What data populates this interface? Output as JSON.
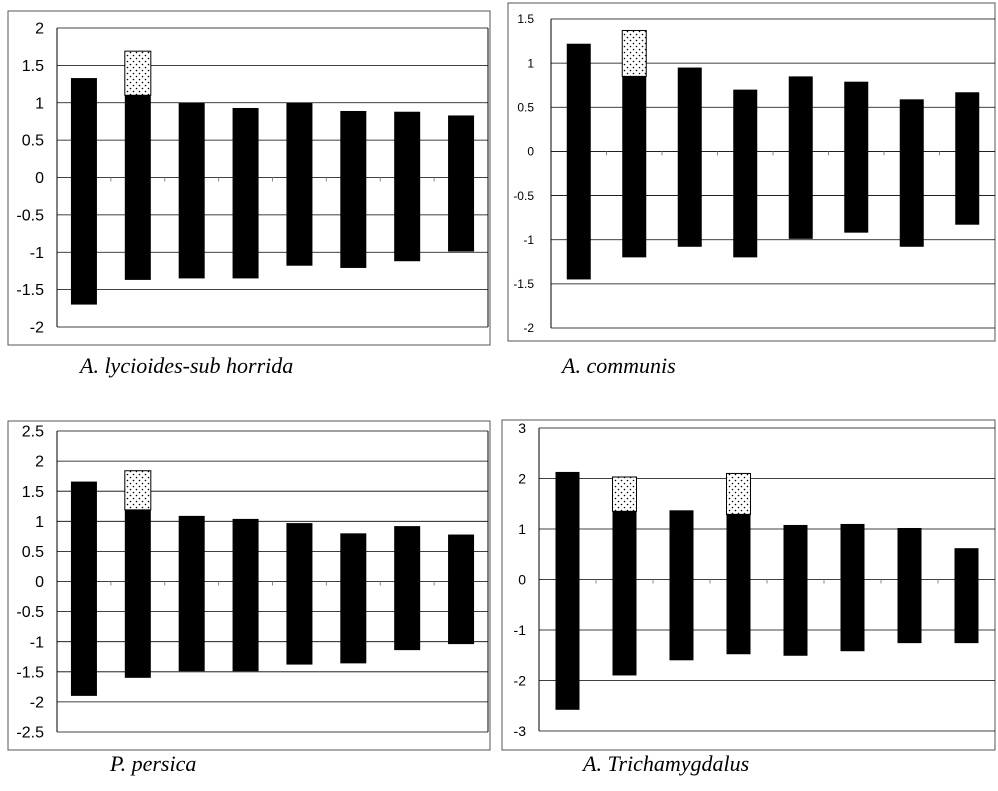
{
  "chart_data": [
    {
      "type": "bar",
      "chart_kind": "range bar with stippled extension",
      "caption": "A. lycioides-sub horrida",
      "ylim": [
        -2,
        2
      ],
      "yticks": [
        "2",
        "1.5",
        "1",
        "0.5",
        "0",
        "-0.5",
        "-1",
        "-1.5",
        "-2"
      ],
      "grid": true,
      "series": [
        {
          "low": -1.7,
          "high": 1.33
        },
        {
          "low": -1.37,
          "high": 1.1,
          "ext_high": 1.69
        },
        {
          "low": -1.35,
          "high": 1.0
        },
        {
          "low": -1.35,
          "high": 0.93
        },
        {
          "low": -1.18,
          "high": 1.0
        },
        {
          "low": -1.21,
          "high": 0.89
        },
        {
          "low": -1.12,
          "high": 0.88
        },
        {
          "low": -0.99,
          "high": 0.83
        }
      ]
    },
    {
      "type": "bar",
      "chart_kind": "range bar with stippled extension",
      "caption": "A. communis",
      "ylim": [
        -2,
        1.5
      ],
      "yticks": [
        "1.5",
        "1",
        "0.5",
        "0",
        "-0.5",
        "-1",
        "-1.5",
        "-2"
      ],
      "grid": true,
      "series": [
        {
          "low": -1.45,
          "high": 1.22
        },
        {
          "low": -1.2,
          "high": 0.85,
          "ext_high": 1.37
        },
        {
          "low": -1.08,
          "high": 0.95
        },
        {
          "low": -1.2,
          "high": 0.7
        },
        {
          "low": -0.99,
          "high": 0.85
        },
        {
          "low": -0.92,
          "high": 0.79
        },
        {
          "low": -1.08,
          "high": 0.59
        },
        {
          "low": -0.83,
          "high": 0.67
        }
      ]
    },
    {
      "type": "bar",
      "chart_kind": "range bar with stippled extension",
      "caption": "P. persica",
      "ylim": [
        -2.5,
        2.5
      ],
      "yticks": [
        "2.5",
        "2",
        "1.5",
        "1",
        "0.5",
        "0",
        "-0.5",
        "-1",
        "-1.5",
        "-2",
        "-2.5"
      ],
      "grid": true,
      "series": [
        {
          "low": -1.9,
          "high": 1.66
        },
        {
          "low": -1.6,
          "high": 1.19,
          "ext_high": 1.84
        },
        {
          "low": -1.49,
          "high": 1.09
        },
        {
          "low": -1.49,
          "high": 1.04
        },
        {
          "low": -1.38,
          "high": 0.97
        },
        {
          "low": -1.36,
          "high": 0.8
        },
        {
          "low": -1.14,
          "high": 0.92
        },
        {
          "low": -1.04,
          "high": 0.78
        }
      ]
    },
    {
      "type": "bar",
      "chart_kind": "range bar with stippled extension",
      "caption": "A. Trichamygdalus",
      "ylim": [
        -3,
        3
      ],
      "yticks": [
        "3",
        "2",
        "1",
        "0",
        "-1",
        "-2",
        "-3"
      ],
      "grid": true,
      "series": [
        {
          "low": -2.58,
          "high": 2.13
        },
        {
          "low": -1.9,
          "high": 1.35,
          "ext_high": 2.03
        },
        {
          "low": -1.6,
          "high": 1.37
        },
        {
          "low": -1.48,
          "high": 1.29,
          "ext_high": 2.1
        },
        {
          "low": -1.51,
          "high": 1.08
        },
        {
          "low": -1.42,
          "high": 1.1
        },
        {
          "low": -1.26,
          "high": 1.02
        },
        {
          "low": -1.26,
          "high": 0.62
        }
      ]
    }
  ]
}
